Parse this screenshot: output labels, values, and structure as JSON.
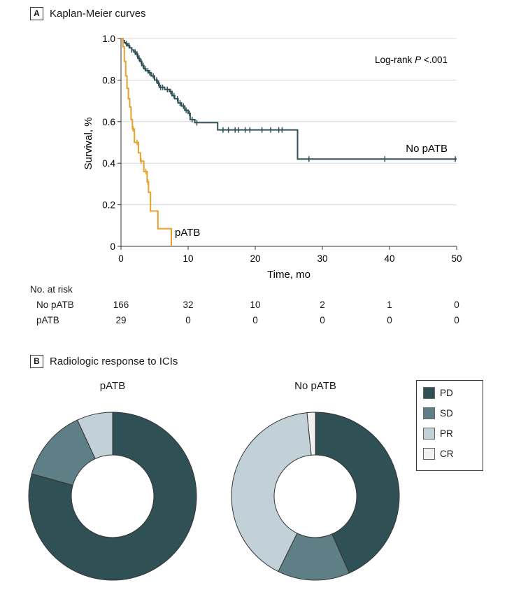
{
  "panel_a": {
    "letter": "A",
    "title": "Kaplan-Meier curves"
  },
  "panel_b": {
    "letter": "B",
    "title": "Radiologic response to ICIs"
  },
  "risk_table": {
    "title": "No. at risk",
    "times": [
      0,
      10,
      20,
      30,
      40,
      50
    ],
    "rows": [
      {
        "label": "No pATB",
        "values": [
          "166",
          "32",
          "10",
          "2",
          "1",
          "0"
        ]
      },
      {
        "label": "pATB",
        "values": [
          "29",
          "0",
          "0",
          "0",
          "0",
          "0"
        ]
      }
    ]
  },
  "chart_data": [
    {
      "type": "line",
      "title": "Kaplan-Meier curves",
      "xlabel": "Time, mo",
      "ylabel": "Survival, %",
      "xlim": [
        0,
        50
      ],
      "ylim": [
        0,
        1.0
      ],
      "xticks": [
        "0",
        "10",
        "20",
        "30",
        "40",
        "50"
      ],
      "yticks": [
        "0",
        "0.2",
        "0.4",
        "0.6",
        "0.8",
        "1.0"
      ],
      "grid": true,
      "annotation": "Log-rank P <.001",
      "series": [
        {
          "name": "No pATB",
          "color": "#2f5055",
          "steps": [
            [
              0,
              1.0
            ],
            [
              0.3,
              0.99
            ],
            [
              0.5,
              0.98
            ],
            [
              0.7,
              0.975
            ],
            [
              1.0,
              0.965
            ],
            [
              1.3,
              0.955
            ],
            [
              1.6,
              0.945
            ],
            [
              1.9,
              0.935
            ],
            [
              2.2,
              0.925
            ],
            [
              2.5,
              0.905
            ],
            [
              2.8,
              0.89
            ],
            [
              3.1,
              0.87
            ],
            [
              3.4,
              0.855
            ],
            [
              3.7,
              0.845
            ],
            [
              4.1,
              0.835
            ],
            [
              4.5,
              0.82
            ],
            [
              5.0,
              0.8
            ],
            [
              5.4,
              0.785
            ],
            [
              5.7,
              0.765
            ],
            [
              6.5,
              0.755
            ],
            [
              7.2,
              0.745
            ],
            [
              7.6,
              0.725
            ],
            [
              8.0,
              0.71
            ],
            [
              8.5,
              0.69
            ],
            [
              9.0,
              0.675
            ],
            [
              9.5,
              0.655
            ],
            [
              10.0,
              0.64
            ],
            [
              10.3,
              0.61
            ],
            [
              11.0,
              0.595
            ],
            [
              14.4,
              0.56
            ],
            [
              26.3,
              0.42
            ]
          ],
          "end": 50,
          "censored": [
            0.8,
            1.2,
            1.6,
            2.1,
            2.4,
            2.7,
            3.0,
            3.3,
            3.6,
            4.0,
            4.3,
            4.8,
            5.3,
            5.6,
            5.9,
            6.2,
            6.9,
            7.4,
            7.9,
            8.4,
            8.8,
            9.3,
            9.7,
            10.2,
            10.6,
            11.3,
            15.2,
            16.0,
            17.0,
            17.5,
            18.5,
            19.2,
            21.0,
            22.3,
            23.5,
            24.0,
            28.0,
            39.3,
            49.8
          ]
        },
        {
          "name": "pATB",
          "color": "#e8a12a",
          "steps": [
            [
              0,
              1.0
            ],
            [
              0.3,
              0.96
            ],
            [
              0.5,
              0.89
            ],
            [
              0.7,
              0.82
            ],
            [
              0.9,
              0.76
            ],
            [
              1.1,
              0.71
            ],
            [
              1.3,
              0.67
            ],
            [
              1.5,
              0.61
            ],
            [
              1.7,
              0.565
            ],
            [
              2.0,
              0.5
            ],
            [
              2.6,
              0.45
            ],
            [
              2.9,
              0.41
            ],
            [
              3.4,
              0.36
            ],
            [
              3.9,
              0.31
            ],
            [
              4.1,
              0.26
            ],
            [
              4.4,
              0.17
            ],
            [
              5.5,
              0.085
            ],
            [
              7.5,
              0.0
            ]
          ],
          "end": 7.5,
          "censored": [
            1.8,
            2.4,
            3.0,
            3.7,
            4.0
          ]
        }
      ]
    },
    {
      "type": "pie",
      "variant": "donut",
      "name": "pATB",
      "labels": [
        "PD",
        "SD",
        "PR",
        "CR"
      ],
      "values": [
        79.3,
        13.8,
        6.9,
        0
      ]
    },
    {
      "type": "pie",
      "variant": "donut",
      "name": "No pATB",
      "labels": [
        "PD",
        "SD",
        "PR",
        "CR"
      ],
      "values": [
        43.4,
        13.9,
        41.1,
        1.6
      ]
    }
  ],
  "legend": {
    "items": [
      {
        "label": "PD",
        "color": "#2f5055"
      },
      {
        "label": "SD",
        "color": "#5f7f87"
      },
      {
        "label": "PR",
        "color": "#c2d0d8"
      },
      {
        "label": "CR",
        "color": "#f1f1f1"
      }
    ]
  }
}
